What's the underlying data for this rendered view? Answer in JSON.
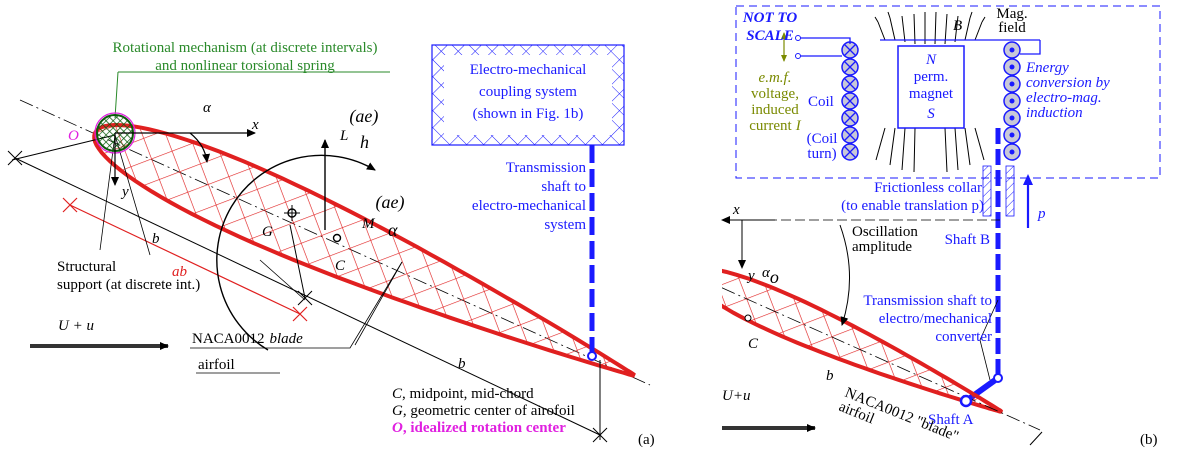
{
  "panel_a": {
    "mechanism_label": [
      "Rotational mechanism (at discrete intervals)",
      "and nonlinear torsional spring"
    ],
    "rotation_center": "O",
    "angle": "α",
    "x_axis": "x",
    "y_axis": "y",
    "lift": {
      "symbol": "L",
      "subscript": "h",
      "superscript": "(ae)"
    },
    "moment": {
      "symbol": "M",
      "subscript": "α",
      "superscript": "(ae)"
    },
    "points": {
      "g": "G",
      "c": "C"
    },
    "dimensions": {
      "b_upper": "b",
      "ab": "ab",
      "b_lower": "b"
    },
    "support_label": [
      "Structural",
      "support (at discrete int.)"
    ],
    "coupling_box": [
      "Electro-mechanical",
      "coupling system",
      "(shown in Fig. 1b)"
    ],
    "shaft_label": [
      "Transmission",
      "shaft to",
      "electro-mechanical",
      "system"
    ],
    "flow": "U + u",
    "blade_label": {
      "name": "NACA0012",
      "style": "blade",
      "line2": "airfoil"
    },
    "legend": [
      {
        "symbol": "C",
        "text": ", midpoint, mid-chord"
      },
      {
        "symbol": "G",
        "text": ", geometric center of airofoil"
      },
      {
        "symbol": "O",
        "text": ", idealized rotation center"
      }
    ],
    "panel_label": "(a)"
  },
  "panel_b": {
    "scale_note": [
      "NOT TO",
      "SCALE"
    ],
    "field_label": [
      "Mag.",
      "field"
    ],
    "field_symbol": "B",
    "emf_label": {
      "lines": [
        "e.m.f.",
        "voltage,",
        "induced"
      ],
      "last": "current",
      "symbol": "I"
    },
    "coil_label": "Coil",
    "coil_turn": [
      "(Coil",
      "turn)"
    ],
    "magnet": [
      "N",
      "perm.",
      "magnet",
      "S"
    ],
    "energy_label": [
      "Energy",
      "conversion by",
      "electro-mag.",
      "induction"
    ],
    "collar_label": [
      "Frictionless collar",
      "(to enable translation p)"
    ],
    "translation": "p",
    "x_axis": "x",
    "y_axis": "y",
    "oscillation_label": [
      "Oscillation",
      "amplitude"
    ],
    "shaft_b": "Shaft B",
    "amplitude": {
      "symbol": "α",
      "subscript": "o"
    },
    "shaft_label": [
      "Transmission shaft to",
      "electro/mechanical",
      "converter"
    ],
    "point_c": "C",
    "shaft_a": "Shaft A",
    "flow": "U+u",
    "chord": "b",
    "blade_label": [
      "NACA0012 \"blade\"",
      "airfoil"
    ],
    "panel_label": "(b)"
  }
}
